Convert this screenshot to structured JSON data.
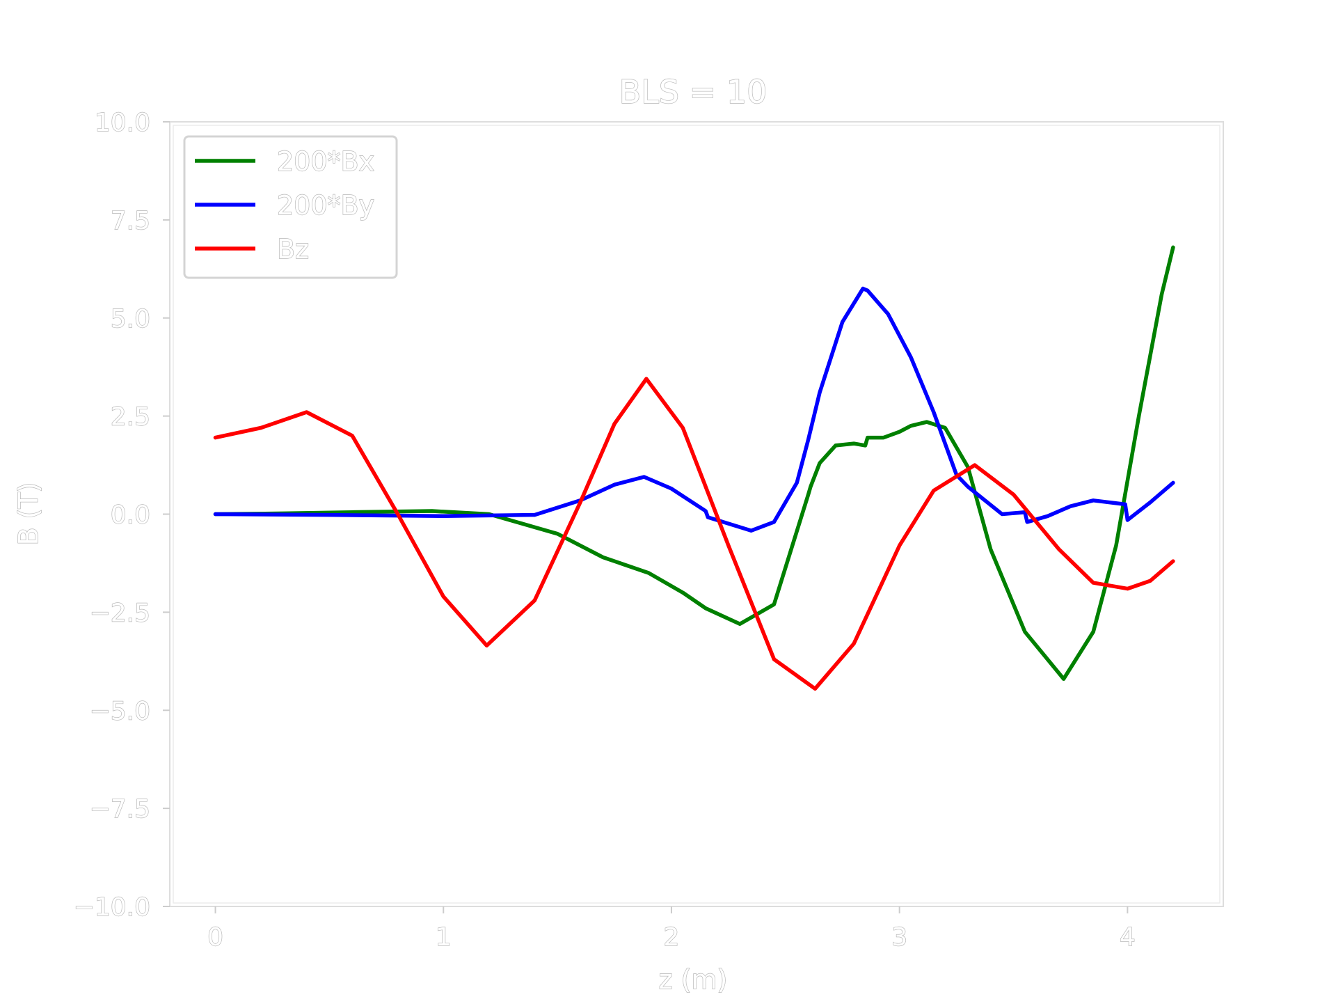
{
  "chart_data": {
    "type": "line",
    "title": "BLS = 10",
    "xlabel": "z (m)",
    "ylabel": "B (T)",
    "xlim": [
      -0.2,
      4.42
    ],
    "ylim": [
      -10.0,
      10.0
    ],
    "xticks": [
      0,
      1,
      2,
      3,
      4
    ],
    "xtick_labels": [
      "0",
      "1",
      "2",
      "3",
      "4"
    ],
    "yticks": [
      10.0,
      7.5,
      5.0,
      2.5,
      0.0,
      -2.5,
      -5.0,
      -7.5,
      -10.0
    ],
    "ytick_labels": [
      "10.0",
      "7.5",
      "5.0",
      "2.5",
      "0.0",
      "−2.5",
      "−5.0",
      "−7.5",
      "−10.0"
    ],
    "grid": false,
    "legend_position": "top-left",
    "series": [
      {
        "name": "200*Bx",
        "color": "#008000",
        "x": [
          0,
          0.3,
          0.6,
          0.95,
          1.2,
          1.5,
          1.7,
          1.9,
          2.05,
          2.15,
          2.3,
          2.45,
          2.6,
          2.61,
          2.65,
          2.72,
          2.8,
          2.85,
          2.86,
          2.93,
          3.0,
          3.05,
          3.12,
          3.2,
          3.3,
          3.4,
          3.55,
          3.72,
          3.85,
          3.95,
          4.05,
          4.15,
          4.2
        ],
        "y": [
          0,
          0.02,
          0.05,
          0.08,
          0.0,
          -0.5,
          -1.1,
          -1.5,
          -2.0,
          -2.4,
          -2.8,
          -2.3,
          0.5,
          0.7,
          1.3,
          1.75,
          1.8,
          1.75,
          1.95,
          1.95,
          2.1,
          2.25,
          2.35,
          2.2,
          1.2,
          -0.9,
          -3.0,
          -4.2,
          -3.0,
          -0.8,
          2.5,
          5.6,
          6.8
        ]
      },
      {
        "name": "200*By",
        "color": "#0000ff",
        "x": [
          0,
          0.5,
          1.0,
          1.4,
          1.6,
          1.75,
          1.88,
          2.0,
          2.15,
          2.16,
          2.35,
          2.45,
          2.55,
          2.6,
          2.65,
          2.75,
          2.84,
          2.86,
          2.95,
          3.05,
          3.15,
          3.25,
          3.3,
          3.45,
          3.55,
          3.56,
          3.65,
          3.75,
          3.85,
          3.99,
          4.0,
          4.1,
          4.2
        ],
        "y": [
          0,
          -0.02,
          -0.05,
          -0.02,
          0.35,
          0.75,
          0.95,
          0.65,
          0.08,
          -0.08,
          -0.42,
          -0.2,
          0.8,
          1.9,
          3.1,
          4.9,
          5.75,
          5.7,
          5.1,
          4.0,
          2.6,
          1.0,
          0.7,
          0.0,
          0.05,
          -0.2,
          -0.05,
          0.2,
          0.35,
          0.25,
          -0.15,
          0.3,
          0.8
        ]
      },
      {
        "name": "Bz",
        "color": "#ff0000",
        "x": [
          0,
          0.2,
          0.4,
          0.6,
          0.8,
          1.0,
          1.19,
          1.4,
          1.6,
          1.75,
          1.89,
          2.05,
          2.25,
          2.45,
          2.63,
          2.8,
          3.0,
          3.15,
          3.33,
          3.5,
          3.7,
          3.85,
          4.0,
          4.1,
          4.2
        ],
        "y": [
          1.95,
          2.2,
          2.6,
          2.0,
          0.0,
          -2.1,
          -3.35,
          -2.2,
          0.3,
          2.3,
          3.45,
          2.2,
          -0.8,
          -3.7,
          -4.45,
          -3.3,
          -0.8,
          0.6,
          1.25,
          0.5,
          -0.9,
          -1.75,
          -1.9,
          -1.7,
          -1.2
        ]
      }
    ]
  }
}
